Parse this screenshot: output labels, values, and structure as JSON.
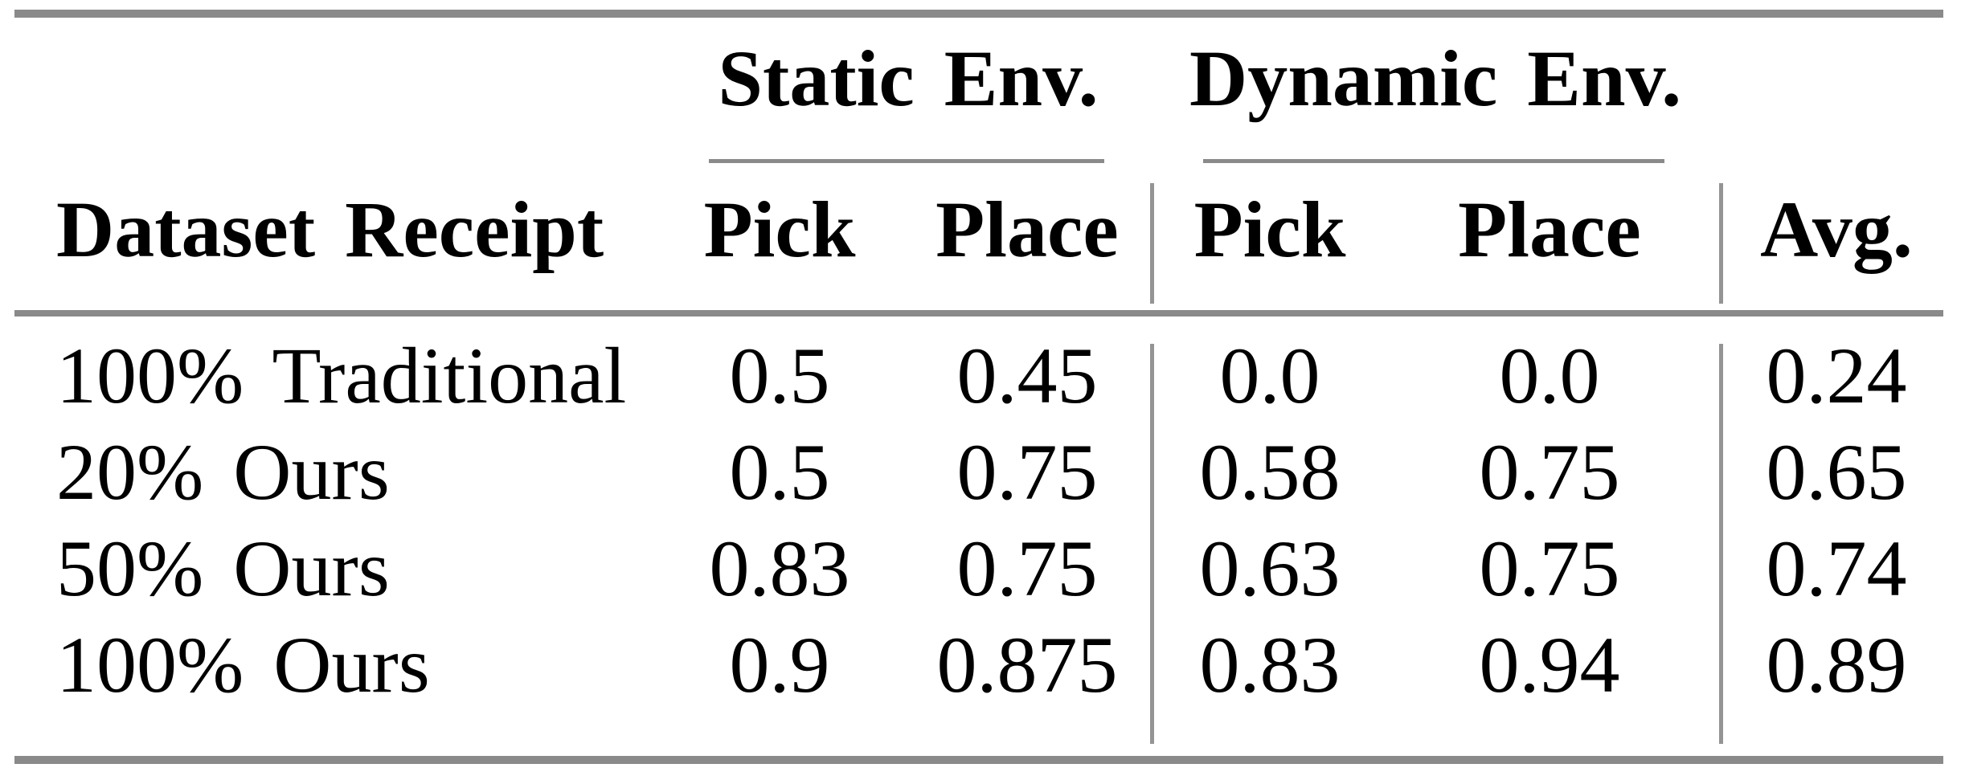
{
  "table": {
    "groups": [
      {
        "label": "Static Env."
      },
      {
        "label": "Dynamic Env."
      }
    ],
    "headers": {
      "row_label": "Dataset Receipt",
      "static_pick": "Pick",
      "static_place": "Place",
      "dynamic_pick": "Pick",
      "dynamic_place": "Place",
      "avg": "Avg."
    },
    "rows": [
      {
        "label": "100% Traditional",
        "static_pick": "0.5",
        "static_place": "0.45",
        "dynamic_pick": "0.0",
        "dynamic_place": "0.0",
        "avg": "0.24"
      },
      {
        "label": "20% Ours",
        "static_pick": "0.5",
        "static_place": "0.75",
        "dynamic_pick": "0.58",
        "dynamic_place": "0.75",
        "avg": "0.65"
      },
      {
        "label": "50% Ours",
        "static_pick": "0.83",
        "static_place": "0.75",
        "dynamic_pick": "0.63",
        "dynamic_place": "0.75",
        "avg": "0.74"
      },
      {
        "label": "100% Ours",
        "static_pick": "0.9",
        "static_place": "0.875",
        "dynamic_pick": "0.83",
        "dynamic_place": "0.94",
        "avg": "0.89"
      }
    ],
    "colors": {
      "rule": "#8a8a8a",
      "column_divider": "#949494",
      "text": "#000000",
      "background": "#ffffff"
    }
  }
}
